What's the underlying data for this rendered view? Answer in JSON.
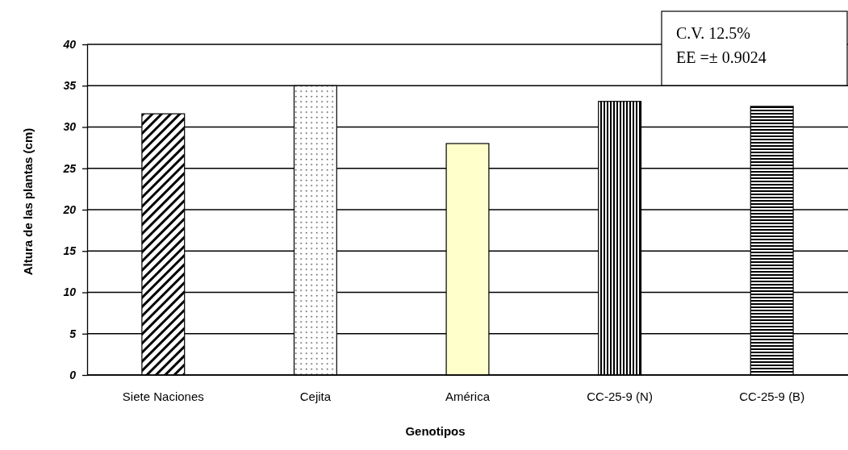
{
  "chart_data": {
    "type": "bar",
    "xlabel": "Genotipos",
    "ylabel": "Altura de las plantas (cm)",
    "categories": [
      "Siete Naciones",
      "Cejita",
      "América",
      "CC-25-9 (N)",
      "CC-25-9 (B)"
    ],
    "values": [
      31.6,
      35.0,
      28.0,
      33.1,
      32.5
    ],
    "colors": [
      "#000000",
      "#000000",
      "#ffffcc",
      "#000000",
      "#000000"
    ],
    "ylim": [
      0,
      40
    ],
    "yticks": [
      0,
      5,
      10,
      15,
      20,
      25,
      30,
      35,
      40
    ],
    "grid": "y",
    "annotations": [
      "C.V. 12.5%\nEE =±  0.9024"
    ]
  }
}
